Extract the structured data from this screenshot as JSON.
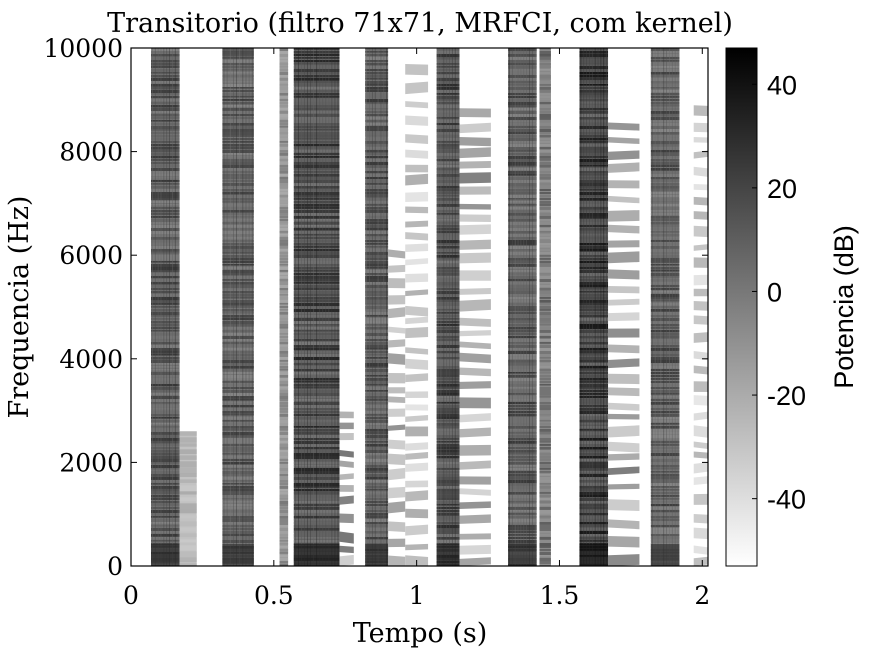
{
  "chart_data": {
    "type": "heatmap",
    "title": "Transitorio (filtro 71x71, MRFCI, com kernel)",
    "xlabel": "Tempo (s)",
    "ylabel": "Frequencia (Hz)",
    "xlim": [
      0,
      2.02
    ],
    "ylim": [
      0,
      10000
    ],
    "x_ticks": [
      0,
      0.5,
      1,
      1.5,
      2
    ],
    "x_tick_labels": [
      "0",
      "0.5",
      "1",
      "1.5",
      "2"
    ],
    "y_ticks": [
      0,
      2000,
      4000,
      6000,
      8000,
      10000
    ],
    "y_tick_labels": [
      "0",
      "2000",
      "4000",
      "6000",
      "8000",
      "10000"
    ],
    "colorbar": {
      "label": "Potencia (dB)",
      "range": [
        -53,
        47
      ],
      "ticks": [
        -40,
        -20,
        0,
        20,
        40
      ],
      "tick_labels": [
        "-40",
        "-20",
        "0",
        "20",
        "40"
      ],
      "colormap": "gray-reversed",
      "low_color": "#ffffff",
      "high_color": "#000000"
    },
    "segments": [
      {
        "t_start": 0.07,
        "t_end": 0.17,
        "f_max": 10000,
        "level": 0.66,
        "style": "dense"
      },
      {
        "t_start": 0.17,
        "t_end": 0.23,
        "f_max": 2600,
        "level": 0.28,
        "style": "faint"
      },
      {
        "t_start": 0.32,
        "t_end": 0.43,
        "f_max": 10000,
        "level": 0.64,
        "style": "dense"
      },
      {
        "t_start": 0.52,
        "t_end": 0.55,
        "f_max": 10000,
        "level": 0.45,
        "style": "thin"
      },
      {
        "t_start": 0.57,
        "t_end": 0.73,
        "f_max": 10000,
        "level": 0.72,
        "style": "dense"
      },
      {
        "t_start": 0.73,
        "t_end": 0.78,
        "f_max": 3000,
        "level": 0.55,
        "style": "harmonic"
      },
      {
        "t_start": 0.82,
        "t_end": 0.9,
        "f_max": 10000,
        "level": 0.66,
        "style": "dense"
      },
      {
        "t_start": 0.9,
        "t_end": 0.96,
        "f_max": 6000,
        "level": 0.45,
        "style": "harmonic"
      },
      {
        "t_start": 0.96,
        "t_end": 1.04,
        "f_max": 9800,
        "level": 0.32,
        "style": "harmonic"
      },
      {
        "t_start": 1.07,
        "t_end": 1.15,
        "f_max": 10000,
        "level": 0.7,
        "style": "dense"
      },
      {
        "t_start": 1.15,
        "t_end": 1.26,
        "f_max": 9000,
        "level": 0.5,
        "style": "harmonic"
      },
      {
        "t_start": 1.32,
        "t_end": 1.42,
        "f_max": 10000,
        "level": 0.66,
        "style": "dense"
      },
      {
        "t_start": 1.43,
        "t_end": 1.47,
        "f_max": 10000,
        "level": 0.55,
        "style": "thin"
      },
      {
        "t_start": 1.57,
        "t_end": 1.67,
        "f_max": 10000,
        "level": 0.76,
        "style": "dense"
      },
      {
        "t_start": 1.67,
        "t_end": 1.78,
        "f_max": 8600,
        "level": 0.52,
        "style": "harmonic"
      },
      {
        "t_start": 1.82,
        "t_end": 1.92,
        "f_max": 10000,
        "level": 0.64,
        "style": "dense"
      },
      {
        "t_start": 1.97,
        "t_end": 2.02,
        "f_max": 8800,
        "level": 0.3,
        "style": "harmonic"
      }
    ]
  }
}
